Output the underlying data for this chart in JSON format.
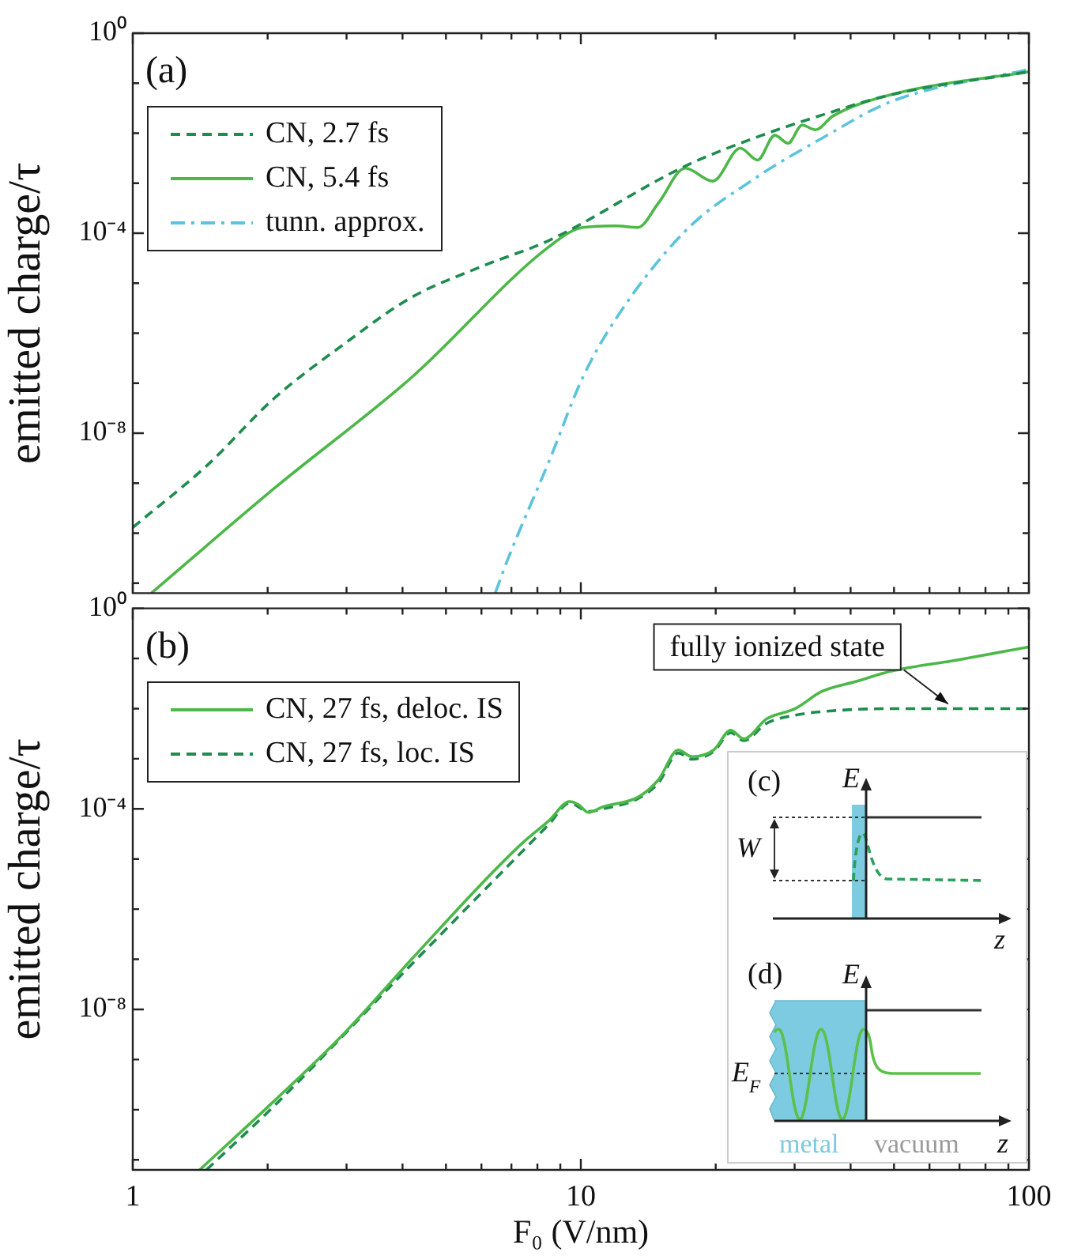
{
  "chart_data": [
    {
      "type": "line",
      "ylabel": "emitted charge/τ",
      "log": "xy",
      "legend": "top left",
      "tick_labels": "y",
      "xlim": [
        1,
        100
      ],
      "ylim": [
        6.3e-12,
        1
      ],
      "xticks": [
        1,
        {
          "value": 2,
          "label": null
        },
        {
          "value": 3,
          "label": null
        },
        {
          "value": 4,
          "label": null
        },
        {
          "value": 5,
          "label": null
        },
        {
          "value": 6,
          "label": null
        },
        {
          "value": 7,
          "label": null
        },
        {
          "value": 8,
          "label": null
        },
        {
          "value": 9,
          "label": null
        },
        10,
        {
          "value": 20,
          "label": null
        },
        {
          "value": 30,
          "label": null
        },
        {
          "value": 40,
          "label": null
        },
        {
          "value": 50,
          "label": null
        },
        {
          "value": 60,
          "label": null
        },
        {
          "value": 70,
          "label": null
        },
        {
          "value": 80,
          "label": null
        },
        {
          "value": 90,
          "label": null
        },
        100
      ],
      "yticks": [
        {
          "value": 1,
          "label": "10⁰"
        },
        {
          "value": 0.1,
          "label": null
        },
        {
          "value": 0.01,
          "label": null
        },
        {
          "value": 0.001,
          "label": null
        },
        {
          "value": 0.0001,
          "label": "10⁻⁴"
        },
        {
          "value": 1e-05,
          "label": null
        },
        {
          "value": 1e-06,
          "label": null
        },
        {
          "value": 1e-07,
          "label": null
        },
        {
          "value": 1e-08,
          "label": "10⁻⁸"
        },
        {
          "value": 1e-09,
          "label": null
        },
        {
          "value": 1e-10,
          "label": null
        },
        {
          "value": 1e-11,
          "label": null
        }
      ],
      "annotations": [
        "(a)"
      ],
      "series": [
        {
          "name": "CN, 2.7 fs",
          "color": "#1e8c4e",
          "line_style": "dashed",
          "x": [
            1,
            1.46,
            2.07,
            2.95,
            4.19,
            5.96,
            8.5,
            17.1,
            24.3,
            34.5,
            49.3,
            100
          ],
          "values": [
            1.3e-10,
            2.2e-09,
            5e-08,
            5.9e-07,
            5.2e-06,
            2.1e-05,
            7.2e-05,
            0.0022,
            0.0079,
            0.023,
            0.059,
            0.17
          ]
        },
        {
          "name": "CN, 5.4 fs",
          "color": "#4cb848",
          "line_style": "solid",
          "x": [
            1.1,
            2.07,
            4.19,
            8.5,
            10.1,
            12,
            13.4,
            14.9,
            17.1,
            19.7,
            22.7,
            24.8,
            27.1,
            29,
            31.2,
            33.4,
            36.5,
            49.3,
            100
          ],
          "values": [
            6.3e-12,
            7.9e-10,
            1.3e-07,
            5.4e-05,
            0.00013,
            0.00014,
            0.00013,
            0.0004,
            0.002,
            0.0011,
            0.005,
            0.0029,
            0.0091,
            0.0063,
            0.0145,
            0.0117,
            0.022,
            0.059,
            0.17
          ]
        },
        {
          "name": "tunn. approx.",
          "color": "#5bc3dc",
          "line_style": "dashdot",
          "x": [
            6.44,
            6.85,
            8.5,
            10.1,
            12,
            17.1,
            24.3,
            34.5,
            49.3,
            100
          ],
          "values": [
            6.3e-12,
            2.8e-11,
            2.8e-09,
            1.3e-07,
            2e-06,
            0.00011,
            0.0012,
            0.0079,
            0.043,
            0.19
          ]
        }
      ]
    },
    {
      "type": "line",
      "xlabel": "F₀ (V/nm)",
      "ylabel": "emitted charge/τ",
      "log": "xy",
      "legend": "top left",
      "xlim": [
        1,
        100
      ],
      "ylim": [
        6.3e-12,
        1
      ],
      "xticks": [
        1,
        {
          "value": 2,
          "label": null
        },
        {
          "value": 3,
          "label": null
        },
        {
          "value": 4,
          "label": null
        },
        {
          "value": 5,
          "label": null
        },
        {
          "value": 6,
          "label": null
        },
        {
          "value": 7,
          "label": null
        },
        {
          "value": 8,
          "label": null
        },
        {
          "value": 9,
          "label": null
        },
        10,
        {
          "value": 20,
          "label": null
        },
        {
          "value": 30,
          "label": null
        },
        {
          "value": 40,
          "label": null
        },
        {
          "value": 50,
          "label": null
        },
        {
          "value": 60,
          "label": null
        },
        {
          "value": 70,
          "label": null
        },
        {
          "value": 80,
          "label": null
        },
        {
          "value": 90,
          "label": null
        },
        100
      ],
      "yticks": [
        {
          "value": 1,
          "label": "10⁰"
        },
        {
          "value": 0.1,
          "label": null
        },
        {
          "value": 0.01,
          "label": null
        },
        {
          "value": 0.001,
          "label": null
        },
        {
          "value": 0.0001,
          "label": "10⁻⁴"
        },
        {
          "value": 1e-05,
          "label": null
        },
        {
          "value": 1e-06,
          "label": null
        },
        {
          "value": 1e-07,
          "label": null
        },
        {
          "value": 1e-08,
          "label": "10⁻⁸"
        },
        {
          "value": 1e-09,
          "label": null
        },
        {
          "value": 1e-10,
          "label": null
        },
        {
          "value": 1e-11,
          "label": null
        }
      ],
      "annotations": [
        "(b)",
        {
          "text": "fully ionized state",
          "x": 66,
          "y": 0.01
        },
        "(c)",
        "E",
        "W",
        "z",
        "(d)",
        "E",
        "E$_{F}$",
        "metal",
        "vacuum",
        "z"
      ],
      "series": [
        {
          "name": "CN, 27 fs, deloc. IS",
          "color": "#4cb848",
          "line_style": "solid",
          "x": [
            1.41,
            2.07,
            2.95,
            4.19,
            5.96,
            7.37,
            8.5,
            9.44,
            9.9,
            10.4,
            11.2,
            13.4,
            14.9,
            16.5,
            17.7,
            19.8,
            21.6,
            23.1,
            26,
            30.1,
            34.5,
            41.2,
            49.3,
            70,
            100
          ],
          "values": [
            6.3e-12,
            1.5e-10,
            3.2e-09,
            1e-07,
            3e-06,
            2e-05,
            5.9e-05,
            0.00014,
            0.00012,
            8.5e-05,
            0.00011,
            0.00017,
            0.00038,
            0.0015,
            0.0011,
            0.0015,
            0.0037,
            0.0025,
            0.0063,
            0.01,
            0.022,
            0.035,
            0.056,
            0.095,
            0.17
          ]
        },
        {
          "name": "CN, 27 fs, loc. IS",
          "color": "#1e8c4e",
          "line_style": "dashed",
          "x": [
            1.46,
            2.07,
            4.19,
            8.5,
            9.44,
            10.4,
            11.2,
            13.4,
            14.9,
            16.5,
            17.7,
            19.8,
            21.6,
            23.1,
            26,
            30.1,
            34.5,
            49.3,
            100
          ],
          "values": [
            6.3e-12,
            1.2e-10,
            7.9e-08,
            5e-05,
            0.00013,
            8.9e-05,
            0.0001,
            0.00016,
            0.00033,
            0.0013,
            0.00098,
            0.0014,
            0.0033,
            0.0023,
            0.0051,
            0.0074,
            0.0087,
            0.01,
            0.01
          ]
        }
      ]
    }
  ]
}
